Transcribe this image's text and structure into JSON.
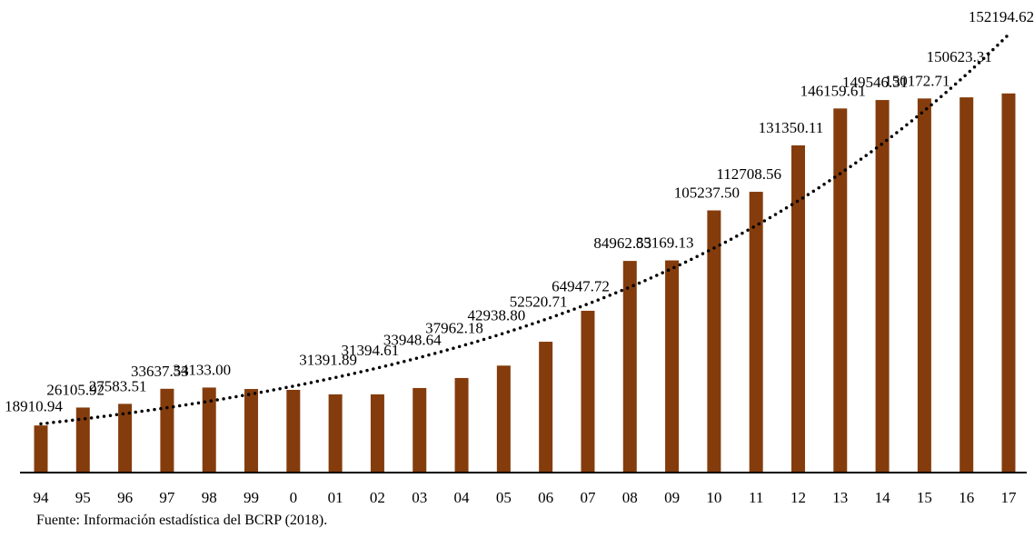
{
  "chart_data": {
    "type": "bar",
    "categories": [
      "94",
      "95",
      "96",
      "97",
      "98",
      "99",
      "0",
      "01",
      "02",
      "03",
      "04",
      "05",
      "06",
      "07",
      "08",
      "09",
      "10",
      "11",
      "12",
      "13",
      "14",
      "15",
      "16",
      "17"
    ],
    "values": [
      18910.94,
      26105.92,
      27583.51,
      33637.53,
      34133.0,
      33550,
      33200,
      31391.89,
      31394.61,
      33948.64,
      37962.18,
      42938.8,
      52520.71,
      64947.72,
      84962.53,
      85169.13,
      105237.5,
      112708.56,
      131350.11,
      146159.61,
      149546.31,
      150172.71,
      150623.31,
      152194.62
    ],
    "value_labels": [
      "18910.94",
      "26105.92",
      "27583.51",
      "33637.53",
      "34133.00",
      null,
      null,
      "31391.89",
      "31394.61",
      "33948.64",
      "37962.18",
      "42938.80",
      "52520.71",
      "64947.72",
      "84962.53",
      "85169.13",
      "105237.50",
      "112708.56",
      "131350.11",
      "146159.61",
      "149546.31",
      "150172.71",
      "150623.31",
      "152194.62"
    ],
    "color": "#843c0c",
    "ylim": [
      0,
      170000
    ],
    "trendline": "exponential",
    "source": "Fuente: Información estadística del BCRP (2018)."
  }
}
